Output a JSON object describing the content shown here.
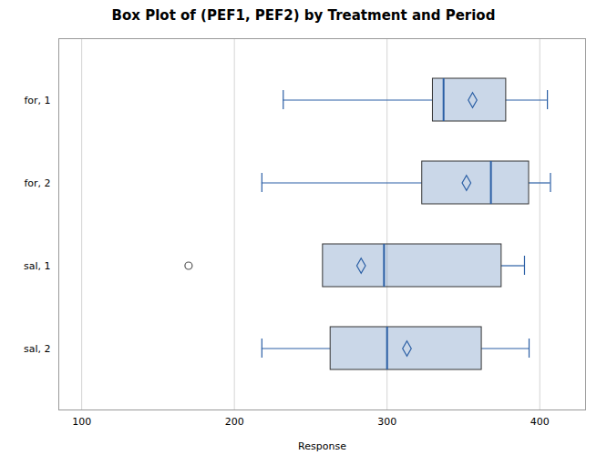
{
  "chart_data": {
    "type": "box",
    "orientation": "horizontal",
    "title": "Box Plot of (PEF1, PEF2) by Treatment and Period",
    "xlabel": "Response",
    "categories": [
      "for, 1",
      "for, 2",
      "sal, 1",
      "sal, 2"
    ],
    "whislo": [
      232,
      218,
      258,
      218
    ],
    "q1": [
      330,
      323,
      258,
      263
    ],
    "median": [
      337,
      368,
      298,
      300
    ],
    "q3": [
      378,
      393,
      375,
      362
    ],
    "whishi": [
      405,
      407,
      390,
      393
    ],
    "mean": [
      356,
      352,
      283,
      313
    ],
    "fliers": [
      [],
      [],
      [
        170
      ],
      []
    ],
    "xlim": [
      85,
      430
    ],
    "xticks": [
      100,
      200,
      300,
      400
    ],
    "grid": true,
    "color": "#2b5fa5"
  }
}
